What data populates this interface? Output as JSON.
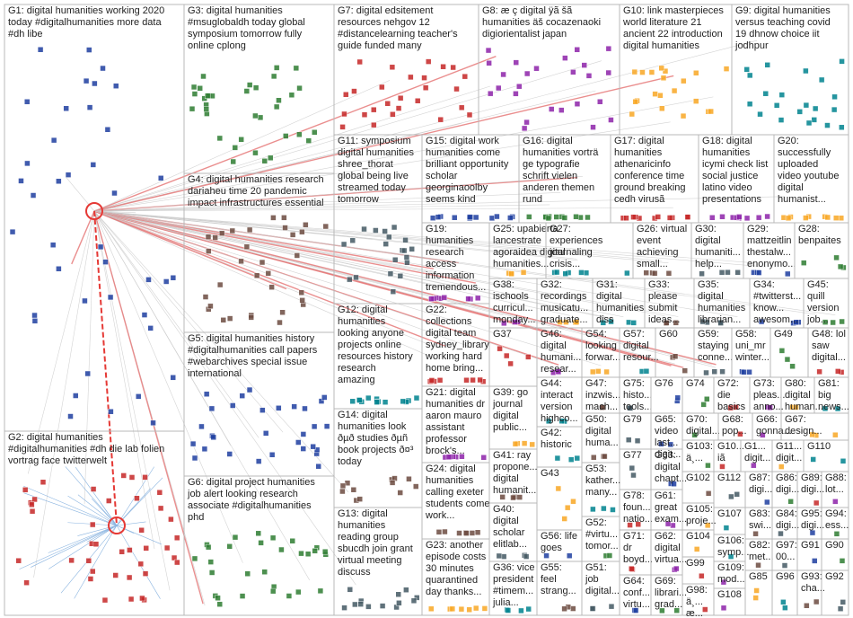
{
  "groups": [
    {
      "label": [
        "G1: digital humanities working 2020",
        "today #digitalhumanities more data",
        "#dh libe"
      ]
    },
    {
      "label": [
        "G3: digital humanities",
        "#msuglobaldh today global",
        "symposium tomorrow fully",
        "online cplong"
      ]
    },
    {
      "label": [
        "G7: digital edsitement",
        "resources nehgov 12",
        "#distancelearning teacher's",
        "guide funded many"
      ]
    },
    {
      "label": [
        "G8: æ ç digital ÿã šã",
        "humanities äš cocazenaoki",
        "digiorientalist japan"
      ]
    },
    {
      "label": [
        "G10: link masterpieces",
        "world literature 21",
        "ancient 22 introduction",
        "digital humanities"
      ]
    },
    {
      "label": [
        "G9: digital humanities",
        "versus teaching covid",
        "19 dhnow choice iit",
        "jodhpur"
      ]
    },
    {
      "label": [
        "G4: digital humanities research",
        "dariaheu time 20 pandemic",
        "impact infrastructures essential"
      ]
    },
    {
      "label": [
        "G11: symposium",
        "digital humanities",
        "shree_thorat",
        "global being live",
        "streamed today",
        "tomorrow"
      ]
    },
    {
      "label": [
        "G15: digital work",
        "humanities come",
        "brilliant opportunity",
        "scholar",
        "georginaoolby",
        "seems kind"
      ]
    },
    {
      "label": [
        "G16: digital",
        "humanities vorträ",
        "ge typografie",
        "schrift vielen",
        "anderen themen",
        "rund"
      ]
    },
    {
      "label": [
        "G17: digital",
        "humanities",
        "athenaricinfo",
        "conference time",
        "ground breaking",
        "cedh virusã"
      ]
    },
    {
      "label": [
        "G18: digital",
        "humanities",
        "icymi check list",
        "social justice",
        "latino video",
        "presentations"
      ]
    },
    {
      "label": [
        "G20:",
        "successfully",
        "uploaded",
        "video youtube",
        "digital",
        "humanist..."
      ]
    },
    {
      "label": [
        "G12: digital",
        "humanities",
        "looking anyone",
        "projects online",
        "resources history",
        "research",
        "amazing"
      ]
    },
    {
      "label": [
        "G14: digital",
        "humanities look",
        "ðµð studies ðµñ",
        "book projects ð¤³",
        "today"
      ]
    },
    {
      "label": [
        "G13: digital",
        "humanities",
        "reading group",
        "sbucdh join grant",
        "virtual meeting",
        "discuss"
      ]
    },
    {
      "label": [
        "G5: digital humanities history",
        "#digitalhumanities call papers",
        "#webarchives special issue",
        "international"
      ]
    },
    {
      "label": [
        "G6: digital project humanities",
        "job alert looking research",
        "associate #digitalhumanities",
        "phd"
      ]
    },
    {
      "label": [
        "G2: digital humanities",
        "#digitalhumanities #dh die lab folien",
        "vortrag face twitterwelt"
      ]
    },
    {
      "label": [
        "G19:",
        "humanities",
        "research",
        "access",
        "information",
        "tremendous..."
      ]
    },
    {
      "label": [
        "G25: upabierta",
        "lancestrate",
        "agoraidea digital",
        "humanities..."
      ]
    },
    {
      "label": [
        "G27:",
        "experiences",
        "journaling",
        "crisis..."
      ]
    },
    {
      "label": [
        "G26: virtual",
        "event",
        "achieving",
        "small..."
      ]
    },
    {
      "label": [
        "G30:",
        "digital",
        "humaniti...",
        "help..."
      ]
    },
    {
      "label": [
        "G29:",
        "mattzeitlin",
        "thestalw...",
        "enonymo..."
      ]
    },
    {
      "label": [
        "G28:",
        "benpaites"
      ]
    },
    {
      "label": [
        "G22:",
        "collections",
        "digital team",
        "sydney_library",
        "working hard",
        "home bring..."
      ]
    },
    {
      "label": [
        "G38:",
        "ischools",
        "curricul...",
        "monday..."
      ]
    },
    {
      "label": [
        "G32:",
        "recordings",
        "musicatu...",
        "graduate..."
      ]
    },
    {
      "label": [
        "G31:",
        "digital",
        "humanities",
        "diss"
      ]
    },
    {
      "label": [
        "G33:",
        "please",
        "submit",
        "ideas..."
      ]
    },
    {
      "label": [
        "G35:",
        "digital",
        "humanities",
        "librarian..."
      ]
    },
    {
      "label": [
        "G34:",
        "#twitterst...",
        "know...",
        "awesom..."
      ]
    },
    {
      "label": [
        "G45:",
        "quill",
        "version",
        "job..."
      ]
    },
    {
      "label": [
        "G37"
      ]
    },
    {
      "label": [
        "G46:",
        "digital",
        "humani...",
        "resear..."
      ]
    },
    {
      "label": [
        "G54:",
        "looking",
        "forwar..."
      ]
    },
    {
      "label": [
        "G57:",
        "digital",
        "resour..."
      ]
    },
    {
      "label": [
        "G60"
      ]
    },
    {
      "label": [
        "G59:",
        "staying",
        "conne..."
      ]
    },
    {
      "label": [
        "G58:",
        "uni_mr",
        "winter..."
      ]
    },
    {
      "label": [
        "G49"
      ]
    },
    {
      "label": [
        "G48: lol",
        "saw",
        "digital..."
      ]
    },
    {
      "label": [
        "G21: digital",
        "humanities dr",
        "aaron mauro",
        "assistant",
        "professor",
        "brock's..."
      ]
    },
    {
      "label": [
        "G39: go",
        "journal",
        "digital",
        "public..."
      ]
    },
    {
      "label": [
        "G44:",
        "interact",
        "version",
        "highco..."
      ]
    },
    {
      "label": [
        "G47:",
        "inzwis...",
        "mach..."
      ]
    },
    {
      "label": [
        "G75:",
        "histo...",
        "tools..."
      ]
    },
    {
      "label": [
        "G76"
      ]
    },
    {
      "label": [
        "G74"
      ]
    },
    {
      "label": [
        "G72:",
        "die",
        "basics"
      ]
    },
    {
      "label": [
        "G73:",
        "pleas...",
        "anno..."
      ]
    },
    {
      "label": [
        "G80:",
        "digital",
        "human..."
      ]
    },
    {
      "label": [
        "G81:",
        "big",
        "news..."
      ]
    },
    {
      "label": [
        "G50:",
        "digital",
        "huma..."
      ]
    },
    {
      "label": [
        "G79"
      ]
    },
    {
      "label": [
        "G65:",
        "video",
        "last...",
        "digit..."
      ]
    },
    {
      "label": [
        "G70:",
        "digital..."
      ]
    },
    {
      "label": [
        "G68:",
        "pop..."
      ]
    },
    {
      "label": [
        "G66:",
        "gonna..."
      ]
    },
    {
      "label": [
        "G67:",
        "design..."
      ]
    },
    {
      "label": [
        "G42:",
        "historic"
      ]
    },
    {
      "label": [
        "G41: ray",
        "propone...",
        "digital",
        "humanit..."
      ]
    },
    {
      "label": [
        "G77"
      ]
    },
    {
      "label": [
        "G63:",
        "digital",
        "chapt..."
      ]
    },
    {
      "label": [
        "G103:",
        "ä¸..."
      ]
    },
    {
      "label": [
        "G10...",
        "iã"
      ]
    },
    {
      "label": [
        "G1...",
        "digit..."
      ]
    },
    {
      "label": [
        "G11...",
        "digit..."
      ]
    },
    {
      "label": [
        "G110"
      ]
    },
    {
      "label": [
        "G102"
      ]
    },
    {
      "label": [
        "G112"
      ]
    },
    {
      "label": [
        "G87:",
        "digi..."
      ]
    },
    {
      "label": [
        "G86:",
        "digi..."
      ]
    },
    {
      "label": [
        "G89:",
        "digi..."
      ]
    },
    {
      "label": [
        "G88:",
        "lot..."
      ]
    },
    {
      "label": [
        "G43"
      ]
    },
    {
      "label": [
        "G53:",
        "kather...",
        "many..."
      ]
    },
    {
      "label": [
        "G24: digital",
        "humanities",
        "calling exeter",
        "students come",
        "work..."
      ]
    },
    {
      "label": [
        "G40:",
        "digital",
        "scholar",
        "elitlab..."
      ]
    },
    {
      "label": [
        "G56: life",
        "goes"
      ]
    },
    {
      "label": [
        "G52:",
        "#virtu...",
        "tomor..."
      ]
    },
    {
      "label": [
        "G78:",
        "foun...",
        "natio..."
      ]
    },
    {
      "label": [
        "G61:",
        "great",
        "exam..."
      ]
    },
    {
      "label": [
        "G105:",
        "proje..."
      ]
    },
    {
      "label": [
        "G107"
      ]
    },
    {
      "label": [
        "G83:",
        "swi..."
      ]
    },
    {
      "label": [
        "G84:",
        "digi..."
      ]
    },
    {
      "label": [
        "G95:",
        "digi..."
      ]
    },
    {
      "label": [
        "G94:",
        "ess..."
      ]
    },
    {
      "label": [
        "G71:",
        "dr",
        "boyd..."
      ]
    },
    {
      "label": [
        "G62:",
        "digital",
        "virtua..."
      ]
    },
    {
      "label": [
        "G104"
      ]
    },
    {
      "label": [
        "G106:",
        "symp..."
      ]
    },
    {
      "label": [
        "G82:",
        "met..."
      ]
    },
    {
      "label": [
        "G97:",
        "00..."
      ]
    },
    {
      "label": [
        "G91"
      ]
    },
    {
      "label": [
        "G90"
      ]
    },
    {
      "label": [
        "G99"
      ]
    },
    {
      "label": [
        "G109:",
        "mod..."
      ]
    },
    {
      "label": [
        "G23: another",
        "episode costs",
        "30 minutes",
        "quarantined",
        "day thanks..."
      ]
    },
    {
      "label": [
        "G36: vice",
        "president",
        "#timem...",
        "julia..."
      ]
    },
    {
      "label": [
        "G55:",
        "feel",
        "strang..."
      ]
    },
    {
      "label": [
        "G51:",
        "job",
        "digital..."
      ]
    },
    {
      "label": [
        "G64:",
        "conf...",
        "virtu..."
      ]
    },
    {
      "label": [
        "G69:",
        "librari...",
        "grad..."
      ]
    },
    {
      "label": [
        "G98:",
        "ä¸...",
        "æ..."
      ]
    },
    {
      "label": [
        "G108"
      ]
    },
    {
      "label": [
        "G85"
      ]
    },
    {
      "label": [
        "G96"
      ]
    },
    {
      "label": [
        "G93:",
        "cha..."
      ]
    },
    {
      "label": [
        "G92"
      ]
    }
  ]
}
